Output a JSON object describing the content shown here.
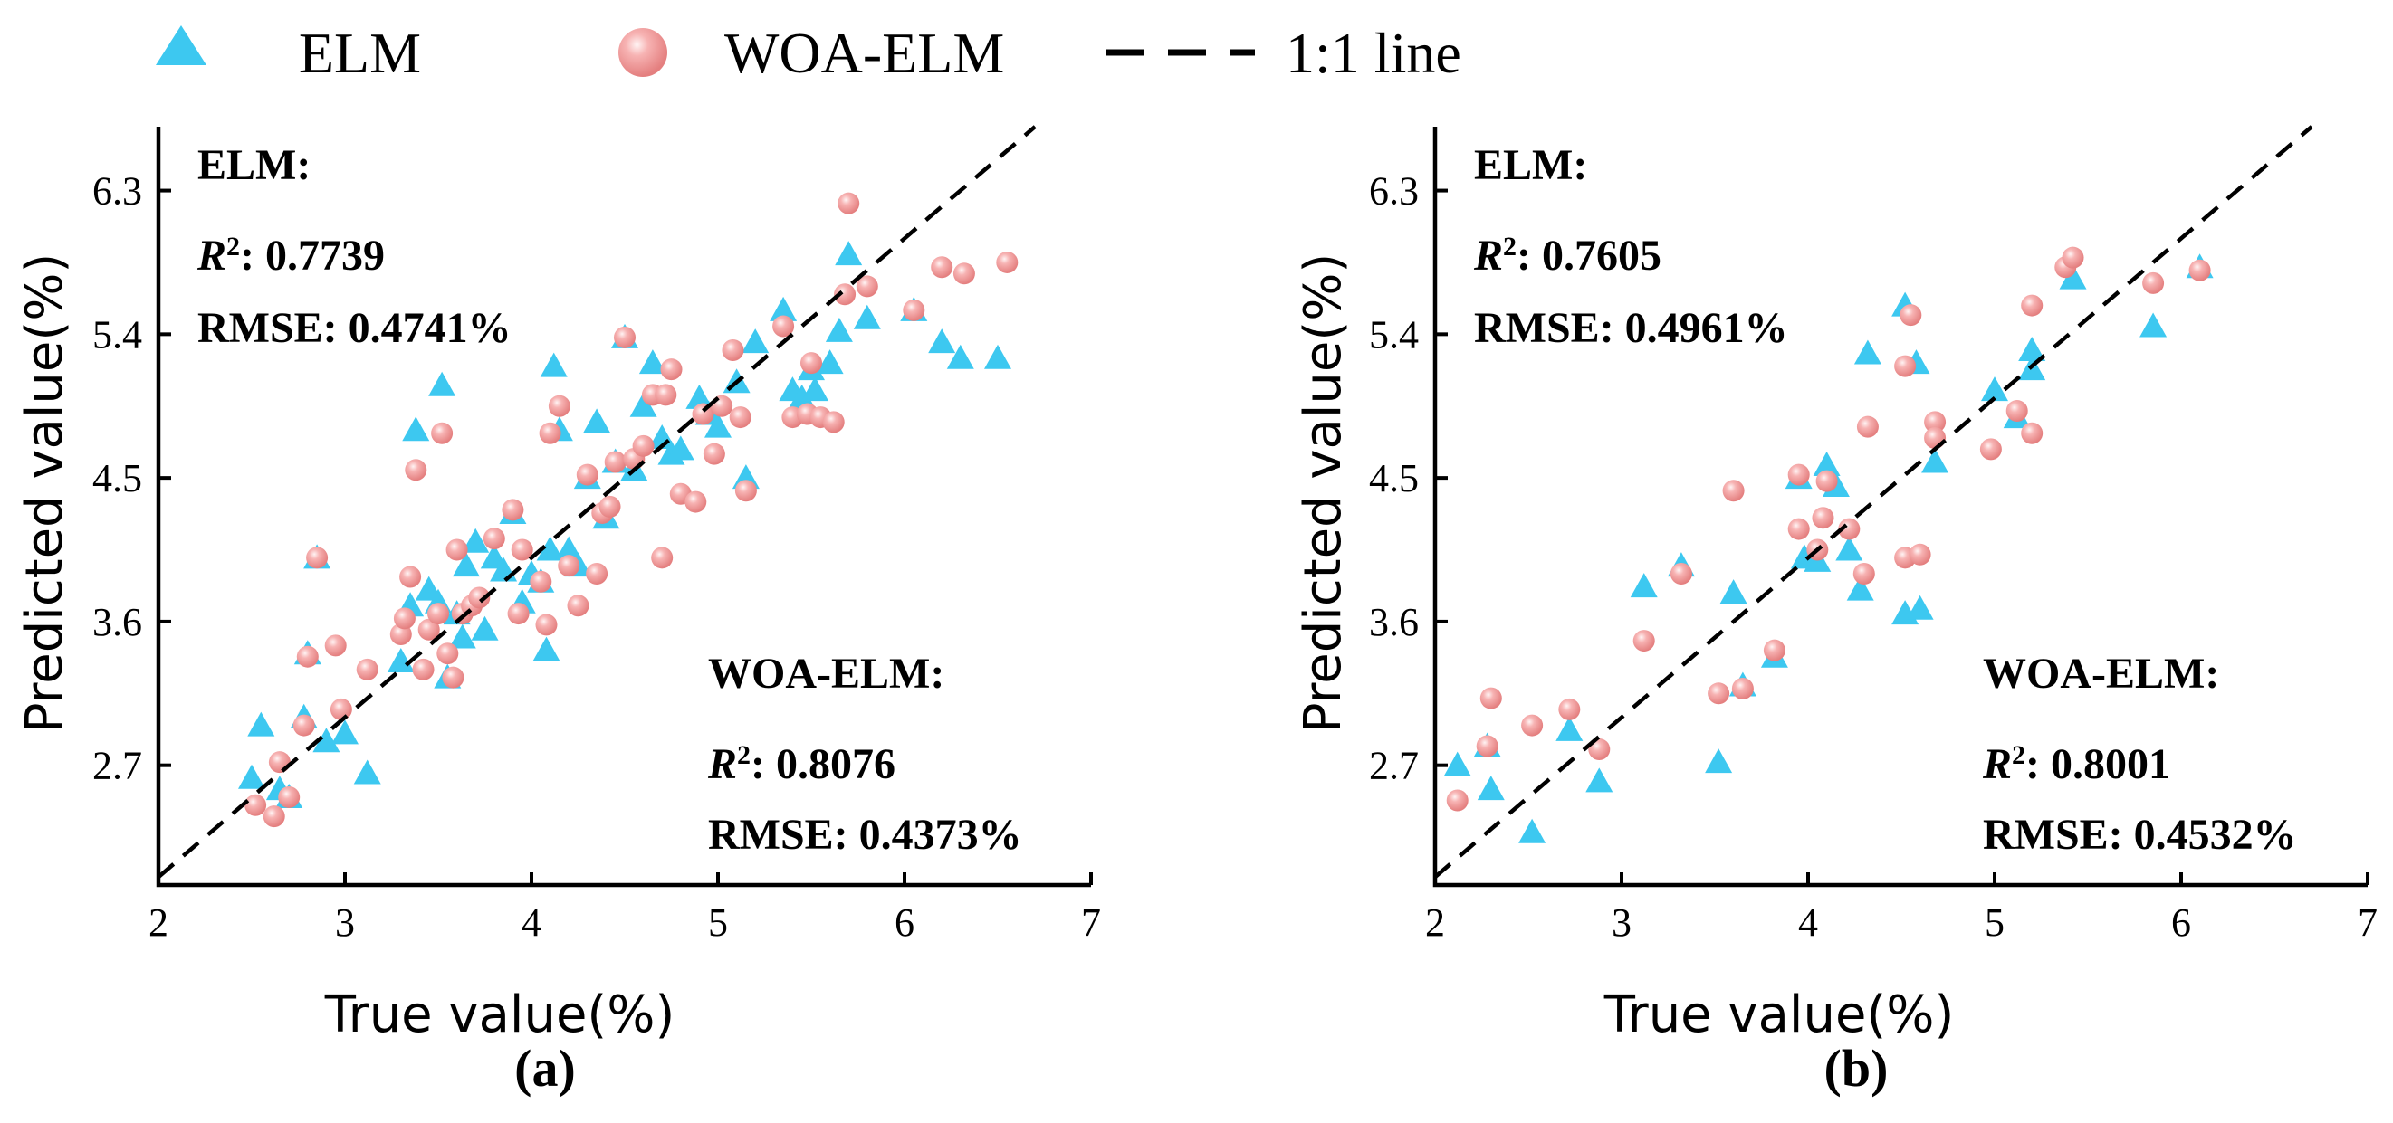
{
  "legend": {
    "items": [
      {
        "label": "ELM",
        "marker": "triangle",
        "color": "#3dc8f0"
      },
      {
        "label": "WOA-ELM",
        "marker": "sphere",
        "color": "#f29a9a"
      },
      {
        "label": "1:1 line",
        "marker": "dashed-line",
        "color": "#000000"
      }
    ]
  },
  "colors": {
    "elm": "#3dc8f0",
    "woa": "#f29a9a",
    "woa_highlight": "#fde6e6",
    "line": "#000000"
  },
  "chart_data": [
    {
      "type": "scatter",
      "panel_label": "(a)",
      "xlabel": "True value(%)",
      "ylabel": "Predicted value(%)",
      "xlim": [
        2,
        7
      ],
      "ylim": [
        1.95,
        6.7
      ],
      "xticks": [
        "2",
        "3",
        "4",
        "5",
        "6",
        "7"
      ],
      "yticks": [
        "2.7",
        "3.6",
        "4.5",
        "5.4",
        "6.3"
      ],
      "xtick_values": [
        2,
        3,
        4,
        5,
        6,
        7
      ],
      "ytick_values": [
        2.7,
        3.6,
        4.5,
        5.4,
        6.3
      ],
      "legend_position": "top (shared)",
      "stats": {
        "elm": {
          "title": "ELM:",
          "r2_label": "R",
          "r2_sup": "2",
          "r2_value": ": 0.7739",
          "rmse": "RMSE: 0.4741%"
        },
        "woa": {
          "title": "WOA-ELM:",
          "r2_label": "R",
          "r2_sup": "2",
          "r2_value": ": 0.8076",
          "rmse": "RMSE: 0.4373%"
        }
      },
      "series": [
        {
          "name": "ELM",
          "marker": "triangle",
          "points": [
            [
              2.5,
              2.62
            ],
            [
              2.55,
              2.95
            ],
            [
              2.65,
              2.55
            ],
            [
              2.7,
              2.5
            ],
            [
              2.78,
              3.0
            ],
            [
              2.8,
              3.4
            ],
            [
              2.85,
              4.0
            ],
            [
              2.9,
              2.85
            ],
            [
              3.0,
              2.9
            ],
            [
              3.12,
              2.65
            ],
            [
              3.3,
              3.35
            ],
            [
              3.35,
              3.7
            ],
            [
              3.38,
              4.8
            ],
            [
              3.45,
              3.8
            ],
            [
              3.5,
              3.72
            ],
            [
              3.52,
              5.08
            ],
            [
              3.55,
              3.25
            ],
            [
              3.6,
              3.65
            ],
            [
              3.63,
              3.5
            ],
            [
              3.65,
              3.95
            ],
            [
              3.7,
              4.1
            ],
            [
              3.75,
              3.55
            ],
            [
              3.8,
              4.0
            ],
            [
              3.85,
              3.92
            ],
            [
              3.9,
              4.28
            ],
            [
              3.95,
              3.72
            ],
            [
              4.0,
              3.9
            ],
            [
              4.05,
              3.85
            ],
            [
              4.08,
              3.42
            ],
            [
              4.1,
              4.05
            ],
            [
              4.12,
              5.2
            ],
            [
              4.15,
              4.8
            ],
            [
              4.2,
              4.05
            ],
            [
              4.25,
              3.95
            ],
            [
              4.3,
              4.5
            ],
            [
              4.35,
              4.85
            ],
            [
              4.4,
              4.25
            ],
            [
              4.45,
              4.6
            ],
            [
              4.5,
              5.38
            ],
            [
              4.55,
              4.55
            ],
            [
              4.6,
              4.95
            ],
            [
              4.65,
              5.22
            ],
            [
              4.7,
              4.75
            ],
            [
              4.75,
              4.65
            ],
            [
              4.8,
              4.68
            ],
            [
              4.9,
              5.0
            ],
            [
              4.95,
              4.9
            ],
            [
              5.0,
              4.82
            ],
            [
              5.1,
              5.1
            ],
            [
              5.15,
              4.5
            ],
            [
              5.2,
              5.35
            ],
            [
              5.35,
              5.55
            ],
            [
              5.4,
              5.05
            ],
            [
              5.45,
              5.0
            ],
            [
              5.5,
              5.18
            ],
            [
              5.52,
              5.05
            ],
            [
              5.6,
              5.22
            ],
            [
              5.65,
              5.42
            ],
            [
              5.7,
              5.9
            ],
            [
              5.8,
              5.5
            ],
            [
              6.05,
              5.55
            ],
            [
              6.2,
              5.35
            ],
            [
              6.3,
              5.25
            ],
            [
              6.5,
              5.25
            ]
          ]
        },
        {
          "name": "WOA-ELM",
          "marker": "sphere",
          "points": [
            [
              2.52,
              2.45
            ],
            [
              2.62,
              2.38
            ],
            [
              2.65,
              2.72
            ],
            [
              2.7,
              2.5
            ],
            [
              2.78,
              2.95
            ],
            [
              2.8,
              3.38
            ],
            [
              2.85,
              4.0
            ],
            [
              2.95,
              3.45
            ],
            [
              2.98,
              3.05
            ],
            [
              3.12,
              3.3
            ],
            [
              3.3,
              3.52
            ],
            [
              3.32,
              3.62
            ],
            [
              3.35,
              3.88
            ],
            [
              3.38,
              4.55
            ],
            [
              3.42,
              3.3
            ],
            [
              3.45,
              3.55
            ],
            [
              3.5,
              3.65
            ],
            [
              3.52,
              4.78
            ],
            [
              3.55,
              3.4
            ],
            [
              3.58,
              3.25
            ],
            [
              3.6,
              4.05
            ],
            [
              3.63,
              3.65
            ],
            [
              3.68,
              3.7
            ],
            [
              3.72,
              3.75
            ],
            [
              3.8,
              4.12
            ],
            [
              3.9,
              4.3
            ],
            [
              3.93,
              3.65
            ],
            [
              3.95,
              4.05
            ],
            [
              4.05,
              3.85
            ],
            [
              4.08,
              3.58
            ],
            [
              4.1,
              4.78
            ],
            [
              4.15,
              4.95
            ],
            [
              4.2,
              3.95
            ],
            [
              4.25,
              3.7
            ],
            [
              4.3,
              4.52
            ],
            [
              4.35,
              3.9
            ],
            [
              4.38,
              4.28
            ],
            [
              4.42,
              4.32
            ],
            [
              4.45,
              4.6
            ],
            [
              4.5,
              5.38
            ],
            [
              4.55,
              4.62
            ],
            [
              4.6,
              4.7
            ],
            [
              4.65,
              5.02
            ],
            [
              4.7,
              4.0
            ],
            [
              4.72,
              5.02
            ],
            [
              4.75,
              5.18
            ],
            [
              4.8,
              4.4
            ],
            [
              4.88,
              4.35
            ],
            [
              4.92,
              4.9
            ],
            [
              4.98,
              4.65
            ],
            [
              5.02,
              4.95
            ],
            [
              5.08,
              5.3
            ],
            [
              5.12,
              4.88
            ],
            [
              5.15,
              4.42
            ],
            [
              5.35,
              5.45
            ],
            [
              5.4,
              4.88
            ],
            [
              5.48,
              4.9
            ],
            [
              5.5,
              5.22
            ],
            [
              5.55,
              4.88
            ],
            [
              5.62,
              4.85
            ],
            [
              5.68,
              5.65
            ],
            [
              5.7,
              6.22
            ],
            [
              5.8,
              5.7
            ],
            [
              6.05,
              5.55
            ],
            [
              6.2,
              5.82
            ],
            [
              6.32,
              5.78
            ],
            [
              6.55,
              5.85
            ]
          ]
        }
      ]
    },
    {
      "type": "scatter",
      "panel_label": "(b)",
      "xlabel": "True value(%)",
      "ylabel": "Predicted value(%)",
      "xlim": [
        2,
        7
      ],
      "ylim": [
        1.95,
        6.7
      ],
      "xticks": [
        "2",
        "3",
        "4",
        "5",
        "6",
        "7"
      ],
      "yticks": [
        "2.7",
        "3.6",
        "4.5",
        "5.4",
        "6.3"
      ],
      "xtick_values": [
        2,
        3,
        4,
        5,
        6,
        7
      ],
      "ytick_values": [
        2.7,
        3.6,
        4.5,
        5.4,
        6.3
      ],
      "legend_position": "top (shared)",
      "stats": {
        "elm": {
          "title": "ELM:",
          "r2_label": "R",
          "r2_sup": "2",
          "r2_value": ": 0.7605",
          "rmse": "RMSE: 0.4961%"
        },
        "woa": {
          "title": "WOA-ELM:",
          "r2_label": "R",
          "r2_sup": "2",
          "r2_value": ": 0.8001",
          "rmse": "RMSE: 0.4532%"
        }
      },
      "series": [
        {
          "name": "ELM",
          "marker": "triangle",
          "points": [
            [
              2.12,
              2.7
            ],
            [
              2.28,
              2.82
            ],
            [
              2.3,
              2.55
            ],
            [
              2.52,
              2.28
            ],
            [
              2.72,
              2.92
            ],
            [
              2.88,
              2.6
            ],
            [
              3.12,
              3.82
            ],
            [
              3.32,
              3.95
            ],
            [
              3.52,
              2.72
            ],
            [
              3.6,
              3.78
            ],
            [
              3.65,
              3.2
            ],
            [
              3.82,
              3.38
            ],
            [
              3.95,
              4.5
            ],
            [
              3.98,
              4.0
            ],
            [
              4.05,
              3.98
            ],
            [
              4.1,
              4.58
            ],
            [
              4.15,
              4.45
            ],
            [
              4.22,
              4.05
            ],
            [
              4.28,
              3.8
            ],
            [
              4.32,
              5.28
            ],
            [
              4.52,
              3.65
            ],
            [
              4.52,
              5.58
            ],
            [
              4.58,
              5.22
            ],
            [
              4.6,
              3.68
            ],
            [
              4.68,
              4.6
            ],
            [
              5.0,
              5.05
            ],
            [
              5.12,
              4.88
            ],
            [
              5.2,
              5.3
            ],
            [
              5.2,
              5.18
            ],
            [
              5.42,
              5.75
            ],
            [
              5.85,
              5.45
            ],
            [
              6.1,
              5.82
            ]
          ]
        },
        {
          "name": "WOA-ELM",
          "marker": "sphere",
          "points": [
            [
              2.12,
              2.48
            ],
            [
              2.28,
              2.82
            ],
            [
              2.3,
              3.12
            ],
            [
              2.52,
              2.95
            ],
            [
              2.72,
              3.05
            ],
            [
              2.88,
              2.8
            ],
            [
              3.12,
              3.48
            ],
            [
              3.32,
              3.9
            ],
            [
              3.52,
              3.15
            ],
            [
              3.6,
              4.42
            ],
            [
              3.65,
              3.18
            ],
            [
              3.82,
              3.42
            ],
            [
              3.95,
              4.18
            ],
            [
              3.95,
              4.52
            ],
            [
              4.05,
              4.05
            ],
            [
              4.08,
              4.25
            ],
            [
              4.1,
              4.48
            ],
            [
              4.22,
              4.18
            ],
            [
              4.3,
              3.9
            ],
            [
              4.32,
              4.82
            ],
            [
              4.52,
              5.2
            ],
            [
              4.52,
              4.0
            ],
            [
              4.55,
              5.52
            ],
            [
              4.6,
              4.02
            ],
            [
              4.68,
              4.85
            ],
            [
              4.68,
              4.75
            ],
            [
              4.98,
              4.68
            ],
            [
              5.12,
              4.92
            ],
            [
              5.2,
              5.58
            ],
            [
              5.2,
              4.78
            ],
            [
              5.38,
              5.82
            ],
            [
              5.42,
              5.88
            ],
            [
              5.85,
              5.72
            ],
            [
              6.1,
              5.8
            ]
          ]
        }
      ]
    }
  ]
}
